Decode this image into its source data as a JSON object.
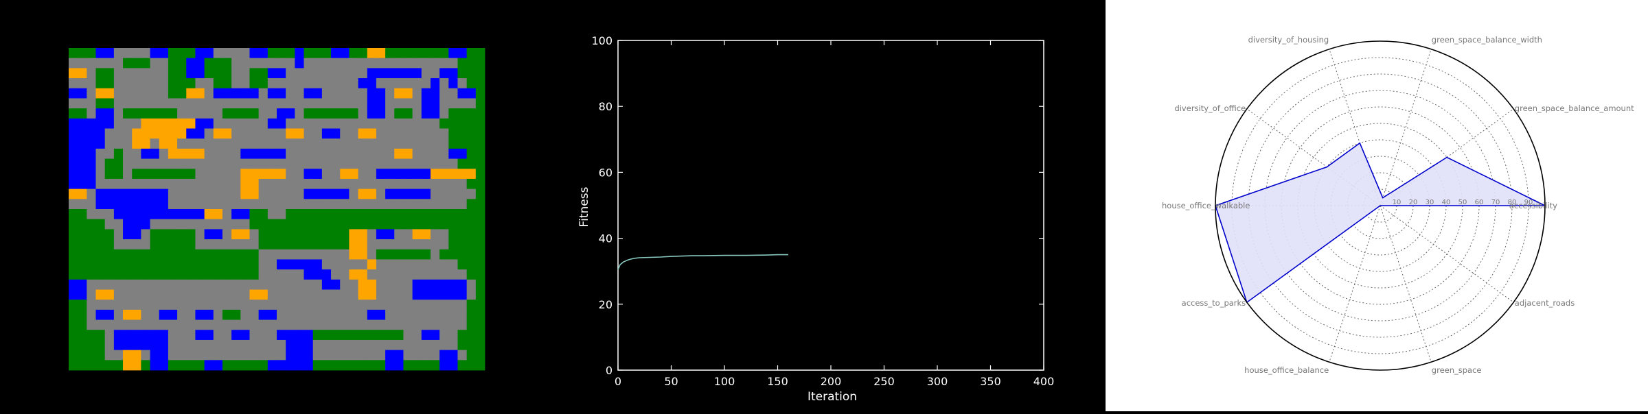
{
  "colors": {
    "background": "#000000",
    "park": "#008000",
    "road": "#808080",
    "housing": "#0000ff",
    "office": "#ffa500",
    "fitness_line": "#88c9c0",
    "radar_fill": "#e0e0fa",
    "radar_line": "#0000cc"
  },
  "grid_legend": {
    "G": "park (green)",
    "R": "road (gray)",
    "B": "housing (blue)",
    "O": "office (orange)"
  },
  "grid_map": [
    "GGGBBRRRRBBGGGBBRRRRBBGGGBGGGBBGGOOGGGGGGGBB",
    "RRRRRRGGGRRGGBBGGGRRRRRRRBRRRRRRRRRRRRRRRRRG",
    "OORGGRRRRRRGGBBGGGRRGGBBRRRRRRRRRBBBBBBRRBBG",
    "RRRGGRRRRRRGGGRRGGRRGGRRRRRRRRRRBBRRRRRRBRBR",
    "BBROORRRRRRGGOORBBBBBRBBRRBBRRRRRBBROORBBRRBB",
    "RRRGGRRRRRRRRRRRRRRRRRRRRRRRRRRRRBBRRRRBBRRRR",
    "GGRBBRGGGGGGRRRRRGGGGRRBBRGGGGGGRBBRGGRBBRGGG",
    "BBBBBRRROOOOOOBBRRRRRRBBRRRRRRRRRRRRRRRRRGGG",
    "BBBBRRROOOOOOBBROORRRRRROORRBBRROORRRRRRRRGGG",
    "BBBBRRROOROORRRRRRRRRRRRRRRRRRRRRRRRRRRRRRGGG",
    "BBBRRGRRBBROOOORRRRBBBBBRRRRRRRRRRRROORRRRBBG",
    "BBBRGGRRRRRRRRRRRRRRRRRRRRRRRRRRRRRRRRRRRRRGG",
    "BBBRGGRGGGGGGGRRRRROOOOORRBBRROORRBBBBBBOOOOO",
    "BBBRRRRRRRRRRRRRRRROORRRRRRRRRRRRRRRRRRRRRRRG",
    "OORBBBBBBBBRRRRRRRROORRRRRBBBBBROORBBBBBRRRRR",
    "RRRBBBBBBBBRRRRRRRRRRRRRRRRRRRRRRRRRRRRRRRRRG",
    "GGRRRBBBBBBBBBBOORBBGGRRGGGGGGGGGGGGGGGGGGGGG",
    "GGGGRRBBBRRRRRRRRRRRGGGGGGGGGGGGGGGGGGGGGGGGG",
    "GGGGGRBBRGGGGGRBBROORGGGGGGGGGGOORBBRROORRGGG",
    "GGGGGRRRRGGGGGRRRRRRRGGGGGGGGGGOORRRRRRRRRGGG",
    "GGGGGGGGGGGGGGGGGGGGGRRRRRRRRRROORGGGGGGRGGGG",
    "GGGGGGGGGGGGGGGGGGGGGRRBBBBBRRRRRORRRRRRRRRGGG",
    "GGGGGGGGGGGGGGGGGGGGGRRRRRBBBRROORRRRRRRRRRRGG",
    "BBRRRRRRRRRRRRRRRRRRRRRRRRRRBBRROORRRRBBBBBBRG",
    "BBROORRRRRRRRRRRRRRROORRRRRRRRRROORRRRBBBBBBRG",
    "GGRRRRRRRRRRRRRRRRRRRRRRRRRRRRRRRRRRRRRRRRRRG",
    "GGRBBROORRBBRRBBRGGRRBBRRRRRRRRRRBBRRRRRRRRRG",
    "GGRRRRRRRRRRRRRRRRRRRRRRRRRRRRRRRRRRRRRRRRRRG",
    "GGGGRBBBBBBRRRBBRRBBRRRBBBBGGGGGGGGGGRRBBRRGG",
    "GGGGRBBBBBBRRRRRRRRRRRRRBBBRRRRRRRRRRRRRRRRGG",
    "GGGGRROORBBRRRRRRRRRRRRRBBBRRRRRRRRBBRRRRBBRG",
    "GGGGGGOOGBBGGGGBBGGGGGBBBBBGGGGGGGGBBGGGGBBGG"
  ],
  "chart_data": [
    {
      "type": "line",
      "title": "",
      "xlabel": "Iteration",
      "ylabel": "Fitness",
      "xlim": [
        0,
        400
      ],
      "ylim": [
        0,
        100
      ],
      "xticks": [
        0,
        50,
        100,
        150,
        200,
        250,
        300,
        350,
        400
      ],
      "yticks": [
        0,
        20,
        40,
        60,
        80,
        100
      ],
      "grid": false,
      "series": [
        {
          "x": [
            0,
            2,
            5,
            10,
            15,
            20,
            30,
            40,
            50,
            60,
            70,
            80,
            100,
            120,
            140,
            150,
            160
          ],
          "y": [
            30.5,
            32.0,
            32.8,
            33.5,
            33.9,
            34.1,
            34.2,
            34.3,
            34.5,
            34.6,
            34.7,
            34.7,
            34.8,
            34.8,
            34.9,
            35.0,
            35.0
          ]
        }
      ]
    },
    {
      "type": "radar",
      "title": "",
      "rlim": [
        0,
        100
      ],
      "rticks": [
        10,
        20,
        30,
        40,
        50,
        60,
        70,
        80,
        90
      ],
      "grid": true,
      "categories": [
        "accessibility",
        "green_space_balance_amount",
        "green_space_balance_width",
        "diversity_of_housing",
        "diversity_of_office",
        "house_office_walkable",
        "access_to_parks",
        "house_office_balance",
        "green_space",
        "adjacent_roads"
      ],
      "series": [
        {
          "values": [
            100,
            50,
            5,
            40,
            40,
            100,
            100,
            0,
            0,
            0
          ]
        }
      ]
    }
  ]
}
